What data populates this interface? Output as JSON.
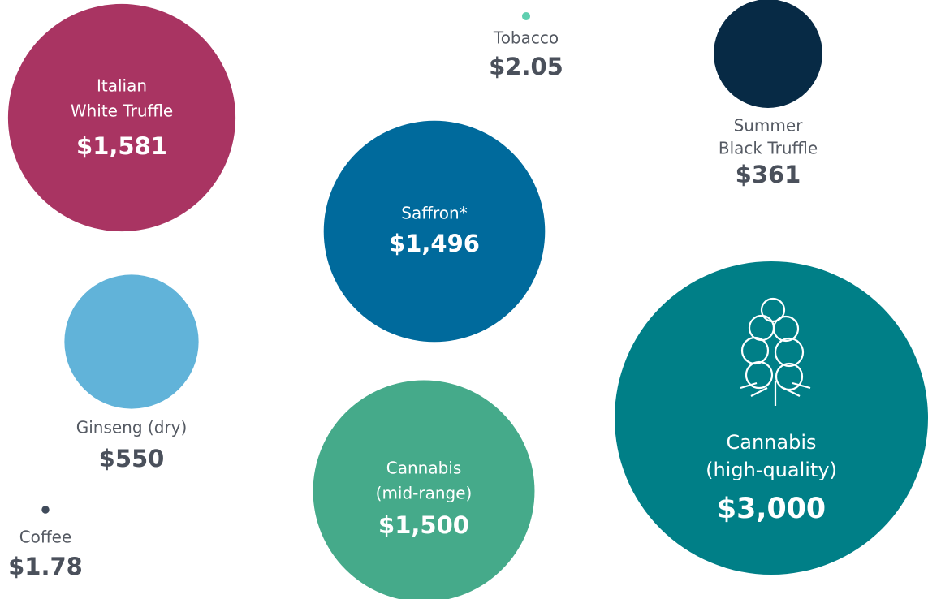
{
  "chart_data": {
    "type": "bubble",
    "categories": [
      [
        "Italian",
        "White Truffle"
      ],
      [
        "Tobacco"
      ],
      [
        "Summer",
        "Black Truffle"
      ],
      [
        "Saffron*"
      ],
      [
        "Ginseng (dry)"
      ],
      [
        "Cannabis",
        "(high-quality)"
      ],
      [
        "Cannabis",
        "(mid-range)"
      ],
      [
        "Coffee"
      ]
    ],
    "values": [
      1581,
      2.05,
      361,
      1496,
      550,
      3000,
      1500,
      1.78
    ],
    "value_labels": [
      "$1,581",
      "$2.05",
      "$361",
      "$1,496",
      "$550",
      "$3,000",
      "$1,500",
      "$1.78"
    ],
    "colors": [
      "#a93462",
      "#5fcfb0",
      "#072a45",
      "#006a9c",
      "#61b3d9",
      "#007f87",
      "#45aa8a",
      "#3f4a5a"
    ]
  }
}
